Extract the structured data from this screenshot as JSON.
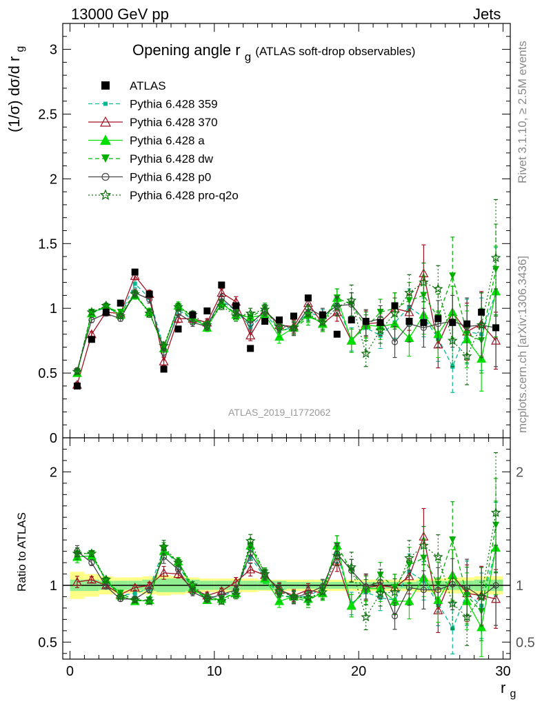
{
  "header": {
    "left": "13000 GeV pp",
    "right": "Jets"
  },
  "side_text": {
    "top": "Rivet 3.1.10, ≥ 2.5M events",
    "bottom": "mcplots.cern.ch [arXiv:1306.3436]"
  },
  "title": {
    "main": "Opening angle r",
    "sub": "g",
    "extra": "(ATLAS soft-drop observables)"
  },
  "analysis_id": "ATLAS_2019_I1772062",
  "axes": {
    "ylabel_main": "(1/σ) dσ/d r",
    "ylabel_main_sub": "g",
    "ylabel_ratio": "Ratio to ATLAS",
    "xlabel": "r",
    "xlabel_sub": "g"
  },
  "chart_data": [
    {
      "type": "line",
      "panel": "main",
      "xlim": [
        -0.5,
        30.5
      ],
      "ylim": [
        0,
        3.2
      ],
      "xticks": [
        "0",
        "10",
        "20",
        "30"
      ],
      "yticks": [
        "0",
        "0.5",
        "1",
        "1.5",
        "2",
        "2.5",
        "3"
      ],
      "x": [
        0.5,
        1.5,
        2.5,
        3.5,
        4.5,
        5.5,
        6.5,
        7.5,
        8.5,
        9.5,
        10.5,
        11.5,
        12.5,
        13.5,
        14.5,
        15.5,
        16.5,
        17.5,
        18.5,
        19.5,
        20.5,
        21.5,
        22.5,
        23.5,
        24.5,
        25.5,
        26.5,
        27.5,
        28.5,
        29.5
      ],
      "series": [
        {
          "name": "ATLAS",
          "color": "#000000",
          "marker": "square",
          "dash": "none",
          "values": [
            0.4,
            0.76,
            0.97,
            1.04,
            1.28,
            1.11,
            0.53,
            0.84,
            0.95,
            0.98,
            1.18,
            1.02,
            0.69,
            0.9,
            0.91,
            0.94,
            1.08,
            0.95,
            0.8,
            0.91,
            0.9,
            0.89,
            1.02,
            0.9,
            0.89,
            0.92,
            0.89,
            0.88,
            0.97,
            0.85
          ],
          "errors": [
            0,
            0,
            0,
            0,
            0,
            0,
            0,
            0,
            0,
            0,
            0,
            0,
            0,
            0,
            0,
            0,
            0,
            0,
            0,
            0,
            0,
            0,
            0,
            0,
            0,
            0,
            0,
            0,
            0,
            0
          ]
        },
        {
          "name": "Pythia 6.428 359",
          "color": "#00b890",
          "marker": "smallsquare",
          "dash": "dashed",
          "values": [
            0.5,
            0.96,
            1.01,
            0.95,
            1.19,
            1.08,
            0.7,
            0.99,
            0.91,
            0.88,
            1.06,
            0.98,
            0.86,
            0.96,
            0.83,
            0.85,
            0.97,
            0.93,
            1.03,
            0.76,
            0.85,
            0.79,
            0.89,
            1.01,
            0.93,
            0.77,
            0.55,
            0.82,
            0.8,
            1.12
          ],
          "errors": [
            0.02,
            0.02,
            0.02,
            0.02,
            0.03,
            0.03,
            0.03,
            0.03,
            0.03,
            0.03,
            0.03,
            0.04,
            0.04,
            0.04,
            0.05,
            0.05,
            0.06,
            0.06,
            0.07,
            0.09,
            0.1,
            0.1,
            0.12,
            0.14,
            0.15,
            0.18,
            0.2,
            0.25,
            0.28,
            0.35
          ]
        },
        {
          "name": "Pythia 6.428 370",
          "color": "#a01020",
          "marker": "triangle-open",
          "dash": "solid",
          "values": [
            0.41,
            0.8,
            0.97,
            0.96,
            1.25,
            1.11,
            0.59,
            0.92,
            0.92,
            0.89,
            1.12,
            1.05,
            0.79,
            0.98,
            0.87,
            0.86,
            1.04,
            0.88,
            0.97,
            0.75,
            0.88,
            0.89,
            1.0,
            0.97,
            1.27,
            0.72,
            0.97,
            0.82,
            0.88,
            0.75
          ],
          "errors": [
            0.02,
            0.02,
            0.02,
            0.02,
            0.03,
            0.03,
            0.03,
            0.03,
            0.03,
            0.03,
            0.03,
            0.04,
            0.04,
            0.04,
            0.05,
            0.05,
            0.06,
            0.06,
            0.07,
            0.09,
            0.1,
            0.1,
            0.12,
            0.14,
            0.22,
            0.18,
            0.2,
            0.22,
            0.25,
            0.22
          ]
        },
        {
          "name": "Pythia 6.428 a",
          "color": "#00e000",
          "marker": "triangle",
          "dash": "solid",
          "values": [
            0.5,
            0.96,
            1.02,
            0.95,
            1.1,
            0.97,
            0.69,
            1.02,
            0.93,
            0.85,
            1.04,
            0.95,
            0.93,
            0.95,
            0.78,
            0.85,
            0.95,
            0.88,
            1.08,
            0.75,
            0.87,
            0.86,
            0.88,
            0.77,
            0.95,
            0.8,
            0.97,
            0.76,
            0.61,
            1.13
          ],
          "errors": [
            0.02,
            0.02,
            0.02,
            0.02,
            0.03,
            0.03,
            0.03,
            0.03,
            0.03,
            0.03,
            0.03,
            0.04,
            0.04,
            0.04,
            0.05,
            0.05,
            0.06,
            0.06,
            0.07,
            0.09,
            0.1,
            0.1,
            0.12,
            0.14,
            0.15,
            0.18,
            0.2,
            0.22,
            0.25,
            0.35
          ]
        },
        {
          "name": "Pythia 6.428 dw",
          "color": "#00b000",
          "marker": "triangle-down",
          "dash": "dashed",
          "values": [
            0.51,
            0.97,
            1.01,
            0.97,
            1.11,
            0.97,
            0.7,
            1.01,
            0.91,
            0.87,
            1.04,
            0.96,
            0.93,
            1.0,
            0.83,
            0.84,
            0.93,
            0.9,
            1.08,
            1.03,
            0.85,
            0.97,
            1.0,
            1.06,
            1.1,
            0.93,
            1.25,
            0.8,
            0.75,
            1.3
          ],
          "errors": [
            0.02,
            0.02,
            0.02,
            0.02,
            0.03,
            0.03,
            0.03,
            0.03,
            0.03,
            0.03,
            0.03,
            0.04,
            0.04,
            0.04,
            0.05,
            0.05,
            0.06,
            0.06,
            0.07,
            0.09,
            0.1,
            0.1,
            0.12,
            0.14,
            0.15,
            0.18,
            0.3,
            0.22,
            0.25,
            0.35
          ]
        },
        {
          "name": "Pythia 6.428 p0",
          "color": "#444444",
          "marker": "circle-open",
          "dash": "solid",
          "values": [
            0.52,
            0.91,
            0.96,
            0.92,
            1.12,
            1.07,
            0.66,
            0.96,
            0.89,
            0.86,
            1.08,
            0.98,
            0.88,
            0.98,
            0.88,
            0.84,
            1.0,
            0.94,
            1.02,
            1.03,
            0.89,
            0.92,
            0.74,
            0.88,
            0.85,
            0.88,
            0.9,
            0.86,
            0.87,
            0.85
          ],
          "errors": [
            0.02,
            0.02,
            0.02,
            0.02,
            0.03,
            0.03,
            0.03,
            0.03,
            0.03,
            0.03,
            0.03,
            0.04,
            0.04,
            0.04,
            0.05,
            0.05,
            0.06,
            0.06,
            0.07,
            0.09,
            0.1,
            0.1,
            0.12,
            0.14,
            0.15,
            0.18,
            0.2,
            0.22,
            0.25,
            0.3
          ]
        },
        {
          "name": "Pythia 6.428 pro-q2o",
          "color": "#107010",
          "marker": "star",
          "dash": "dotted",
          "values": [
            0.51,
            0.97,
            1.02,
            0.94,
            1.11,
            0.96,
            0.71,
            1.01,
            0.95,
            0.87,
            1.02,
            0.94,
            0.96,
            0.99,
            0.86,
            0.85,
            0.96,
            0.89,
            1.01,
            1.06,
            0.65,
            0.83,
            0.96,
            1.12,
            1.2,
            1.15,
            0.75,
            0.63,
            0.87,
            1.39
          ],
          "errors": [
            0.02,
            0.02,
            0.02,
            0.02,
            0.03,
            0.03,
            0.03,
            0.03,
            0.03,
            0.03,
            0.03,
            0.04,
            0.04,
            0.04,
            0.05,
            0.05,
            0.06,
            0.06,
            0.07,
            0.12,
            0.1,
            0.1,
            0.12,
            0.14,
            0.15,
            0.18,
            0.2,
            0.22,
            0.25,
            0.45
          ]
        }
      ]
    },
    {
      "type": "line",
      "panel": "ratio",
      "xlim": [
        -0.5,
        30.5
      ],
      "ylim": [
        0.35,
        2.3
      ],
      "xticks": [
        "0",
        "10",
        "20",
        "30"
      ],
      "yticks": [
        "0.5",
        "1",
        "2"
      ],
      "reference": 1,
      "band_inner": [
        0.05,
        0.05,
        0.04,
        0.04,
        0.04,
        0.05,
        0.06,
        0.06,
        0.05,
        0.04,
        0.04,
        0.04,
        0.04,
        0.04,
        0.04,
        0.03,
        0.03,
        0.03,
        0.03,
        0.03,
        0.03,
        0.03,
        0.03,
        0.03,
        0.04,
        0.04,
        0.04,
        0.04,
        0.05,
        0.05
      ],
      "band_outer": [
        0.12,
        0.1,
        0.08,
        0.07,
        0.07,
        0.08,
        0.09,
        0.08,
        0.07,
        0.06,
        0.06,
        0.06,
        0.06,
        0.05,
        0.05,
        0.05,
        0.05,
        0.05,
        0.05,
        0.05,
        0.05,
        0.05,
        0.05,
        0.05,
        0.06,
        0.06,
        0.07,
        0.07,
        0.08,
        0.08
      ],
      "series": [
        {
          "name": "Pythia 6.428 359",
          "values": [
            1.25,
            1.26,
            1.04,
            0.91,
            0.93,
            0.97,
            1.32,
            1.18,
            0.96,
            0.9,
            0.9,
            0.96,
            1.25,
            1.07,
            0.91,
            0.9,
            0.9,
            0.98,
            1.29,
            0.84,
            0.94,
            0.89,
            0.87,
            1.12,
            1.04,
            0.84,
            0.62,
            0.93,
            0.82,
            1.32
          ]
        },
        {
          "name": "Pythia 6.428 370",
          "values": [
            1.03,
            1.05,
            1.0,
            0.92,
            0.98,
            1.0,
            1.11,
            1.1,
            0.97,
            0.91,
            0.95,
            1.03,
            1.14,
            1.09,
            0.96,
            0.91,
            0.96,
            0.93,
            1.21,
            0.82,
            0.98,
            1.0,
            0.98,
            1.08,
            1.43,
            0.78,
            1.09,
            0.93,
            0.91,
            0.88
          ]
        },
        {
          "name": "Pythia 6.428 a",
          "values": [
            1.25,
            1.26,
            1.05,
            0.91,
            0.86,
            0.87,
            1.3,
            1.21,
            0.98,
            0.87,
            0.88,
            0.93,
            1.35,
            1.06,
            0.86,
            0.9,
            0.88,
            0.93,
            1.35,
            0.82,
            0.97,
            0.97,
            0.86,
            0.86,
            1.07,
            0.87,
            1.09,
            0.86,
            0.63,
            1.33
          ]
        },
        {
          "name": "Pythia 6.428 dw",
          "values": [
            1.28,
            1.28,
            1.04,
            0.93,
            0.87,
            0.87,
            1.32,
            1.2,
            0.96,
            0.89,
            0.88,
            0.94,
            1.35,
            1.11,
            0.91,
            0.89,
            0.86,
            0.95,
            1.35,
            1.13,
            0.94,
            1.09,
            0.98,
            1.18,
            1.24,
            1.01,
            1.4,
            0.91,
            0.77,
            1.53
          ]
        },
        {
          "name": "Pythia 6.428 p0",
          "values": [
            1.3,
            1.2,
            0.99,
            0.88,
            0.88,
            0.96,
            1.25,
            1.14,
            0.94,
            0.88,
            0.92,
            0.96,
            1.28,
            1.09,
            0.97,
            0.89,
            0.93,
            0.99,
            1.28,
            1.13,
            0.99,
            1.03,
            0.73,
            0.98,
            0.96,
            0.96,
            1.01,
            0.98,
            0.9,
            1.0
          ]
        },
        {
          "name": "Pythia 6.428 pro-q2o",
          "values": [
            1.28,
            1.28,
            1.05,
            0.9,
            0.87,
            0.86,
            1.34,
            1.2,
            1.0,
            0.89,
            0.86,
            0.92,
            1.39,
            1.1,
            0.95,
            0.9,
            0.89,
            0.94,
            1.26,
            1.16,
            0.72,
            0.93,
            0.94,
            1.24,
            1.35,
            1.25,
            0.84,
            0.72,
            0.9,
            1.64
          ]
        }
      ]
    }
  ]
}
